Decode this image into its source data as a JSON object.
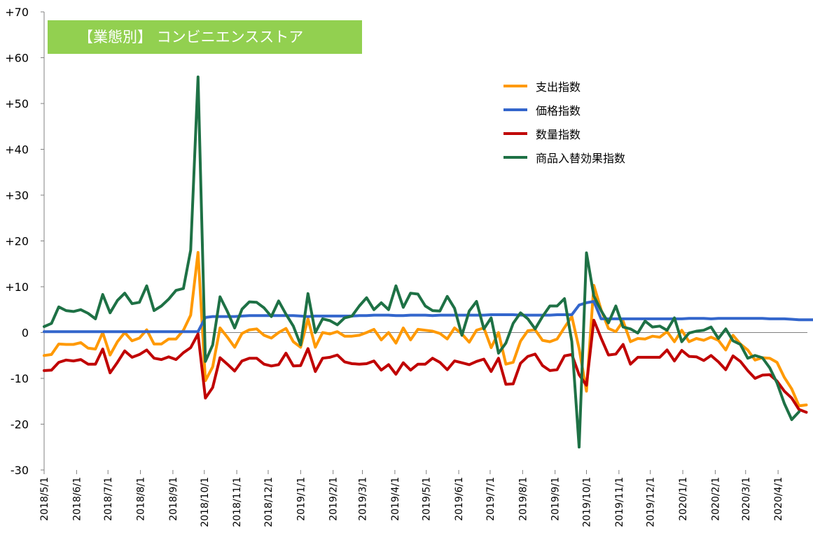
{
  "chart_data": {
    "type": "line",
    "title": "【業態別】 コンビニエンスストア",
    "ylim": [
      -30,
      70
    ],
    "yticks": [
      70,
      60,
      50,
      40,
      30,
      20,
      10,
      0,
      -10,
      -20,
      -30
    ],
    "ytick_labels": [
      "+70",
      "+60",
      "+50",
      "+40",
      "+30",
      "+20",
      "+10",
      "0",
      "-10",
      "-20",
      "-30"
    ],
    "xticks": [
      "2018/5/1",
      "2018/6/1",
      "2018/7/1",
      "2018/8/1",
      "2018/9/1",
      "2018/10/1",
      "2018/11/1",
      "2018/12/1",
      "2019/1/1",
      "2019/2/1",
      "2019/3/1",
      "2019/4/1",
      "2019/5/1",
      "2019/6/1",
      "2019/7/1",
      "2019/8/1",
      "2019/9/1",
      "2019/10/1",
      "2019/11/1",
      "2019/12/1",
      "2020/1/1",
      "2020/2/1",
      "2020/3/1",
      "2020/4/1"
    ],
    "x_start": "2018/5/1",
    "x_end": "2020/4/29",
    "x_step_days": 7,
    "grid": false,
    "legend_position": "top-right",
    "series": [
      {
        "name": "支出指数",
        "color": "#ff9900",
        "values": [
          -5,
          -4.8,
          -2.5,
          -2.6,
          -2.6,
          -2.2,
          -3.4,
          -3.6,
          0,
          -4.9,
          -2,
          0,
          -1.8,
          -1.2,
          0.6,
          -2.5,
          -2.5,
          -1.4,
          -1.4,
          0.5,
          3.8,
          17.5,
          -10.5,
          -7.5,
          1,
          -1,
          -3.2,
          -0.2,
          0.6,
          0.8,
          -0.6,
          -1.2,
          0,
          0.9,
          -2,
          -3.2,
          3,
          -3.2,
          0,
          -0.3,
          0.2,
          -0.8,
          -0.8,
          -0.6,
          0,
          0.7,
          -1.6,
          0,
          -2.3,
          1,
          -1.6,
          0.7,
          0.5,
          0.3,
          -0.2,
          -1.4,
          1,
          -0.3,
          -2.1,
          0.5,
          1,
          -3.3,
          0,
          -6.9,
          -6.5,
          -1.9,
          0.4,
          0.6,
          -1.7,
          -2,
          -1.4,
          1.1,
          3.5,
          -3.5,
          -12.8,
          10.3,
          5,
          0.9,
          0.2,
          2.5,
          -2,
          -1.3,
          -1.4,
          -0.8,
          -1,
          0.2,
          -2,
          0.5,
          -2,
          -1.3,
          -1.7,
          -1,
          -1.7,
          -3.8,
          -0.6,
          -2.5,
          -3.8,
          -6,
          -5.5,
          -5.6,
          -6.5,
          -9.8,
          -12.3,
          -16,
          -15.8
        ]
      },
      {
        "name": "価格指数",
        "color": "#3366cc",
        "values": [
          0.2,
          0.2,
          0.2,
          0.2,
          0.2,
          0.2,
          0.2,
          0.2,
          0.2,
          0.2,
          0.2,
          0.2,
          0.2,
          0.2,
          0.2,
          0.2,
          0.2,
          0.2,
          0.2,
          0.2,
          0.2,
          0.2,
          3.3,
          3.5,
          3.5,
          3.5,
          3.5,
          3.6,
          3.7,
          3.7,
          3.7,
          3.7,
          3.7,
          3.7,
          3.7,
          3.6,
          3.5,
          3.6,
          3.6,
          3.6,
          3.6,
          3.6,
          3.6,
          3.7,
          3.7,
          3.8,
          3.8,
          3.8,
          3.7,
          3.7,
          3.8,
          3.8,
          3.8,
          3.7,
          3.8,
          3.8,
          3.8,
          3.8,
          3.8,
          3.8,
          3.8,
          3.9,
          3.9,
          3.9,
          3.9,
          3.8,
          3.8,
          3.8,
          3.8,
          3.8,
          3.9,
          3.9,
          3.9,
          6,
          6.5,
          6.8,
          3,
          3,
          3,
          3,
          3,
          3,
          3,
          3,
          3,
          3,
          3,
          3,
          3.1,
          3.1,
          3.1,
          3,
          3.1,
          3.1,
          3.1,
          3.1,
          3.1,
          3.1,
          3.1,
          3,
          3,
          3,
          2.9,
          2.8,
          2.8,
          2.8,
          2.8
        ]
      },
      {
        "name": "数量指数",
        "color": "#c00000",
        "values": [
          -8.3,
          -8.2,
          -6.5,
          -6,
          -6.2,
          -5.9,
          -6.9,
          -6.9,
          -3.6,
          -8.8,
          -6.5,
          -4,
          -5.4,
          -4.8,
          -3.8,
          -5.6,
          -5.9,
          -5.3,
          -5.9,
          -4.4,
          -3.3,
          -0.3,
          -14.3,
          -12,
          -5.5,
          -6.9,
          -8.4,
          -6.2,
          -5.6,
          -5.6,
          -6.9,
          -7.3,
          -7,
          -4.5,
          -7.3,
          -7.2,
          -3.5,
          -8.5,
          -5.6,
          -5.4,
          -4.9,
          -6.4,
          -6.8,
          -6.9,
          -6.8,
          -6.2,
          -8.2,
          -7,
          -9.1,
          -6.6,
          -8.2,
          -6.9,
          -6.9,
          -5.6,
          -6.5,
          -8.1,
          -6.2,
          -6.6,
          -7,
          -6.3,
          -5.8,
          -8.5,
          -5.6,
          -11.3,
          -11.2,
          -6.7,
          -5.2,
          -4.7,
          -7.2,
          -8.3,
          -8.1,
          -5.1,
          -4.8,
          -9.2,
          -11.5,
          2.7,
          -1.2,
          -4.9,
          -4.7,
          -2.6,
          -6.9,
          -5.4,
          -5.4,
          -5.4,
          -5.4,
          -3.8,
          -6.2,
          -3.9,
          -5.2,
          -5.3,
          -6.1,
          -5,
          -6.4,
          -8.1,
          -5.1,
          -6.3,
          -8.3,
          -10,
          -9.3,
          -9.2,
          -10.6,
          -12.8,
          -14.3,
          -16.8,
          -17.4
        ]
      },
      {
        "name": "商品入替効果指数",
        "color": "#1e7145",
        "values": [
          1.3,
          2,
          5.6,
          4.8,
          4.6,
          5,
          4.2,
          3,
          8.3,
          4.3,
          7,
          8.6,
          6.3,
          6.6,
          10.2,
          4.8,
          5.8,
          7.3,
          9.2,
          9.6,
          18,
          55.8,
          -6.3,
          -2.7,
          7.8,
          4.6,
          1,
          5.1,
          6.7,
          6.6,
          5.4,
          3.5,
          6.9,
          4,
          1.4,
          -2.7,
          8.5,
          0,
          3,
          2.6,
          1.7,
          3.2,
          3.6,
          5.8,
          7.6,
          5,
          6.5,
          5,
          10.2,
          5.5,
          8.6,
          8.4,
          5.8,
          4.8,
          4.7,
          7.9,
          5.3,
          -0.6,
          4.7,
          6.8,
          0.8,
          3.2,
          -4.5,
          -2.3,
          2,
          4.3,
          3,
          0.8,
          3.5,
          5.8,
          5.8,
          7.4,
          -2,
          -25,
          17.4,
          8,
          4.8,
          2.1,
          5.8,
          1.2,
          0.8,
          -0.1,
          2.5,
          1.2,
          1.4,
          0.5,
          3.2,
          -2,
          -0.1,
          0.3,
          0.5,
          1.2,
          -1.3,
          0.8,
          -1.8,
          -2.6,
          -5.6,
          -5,
          -5.5,
          -7.7,
          -11,
          -15.5,
          -19,
          -17.3
        ]
      }
    ]
  }
}
